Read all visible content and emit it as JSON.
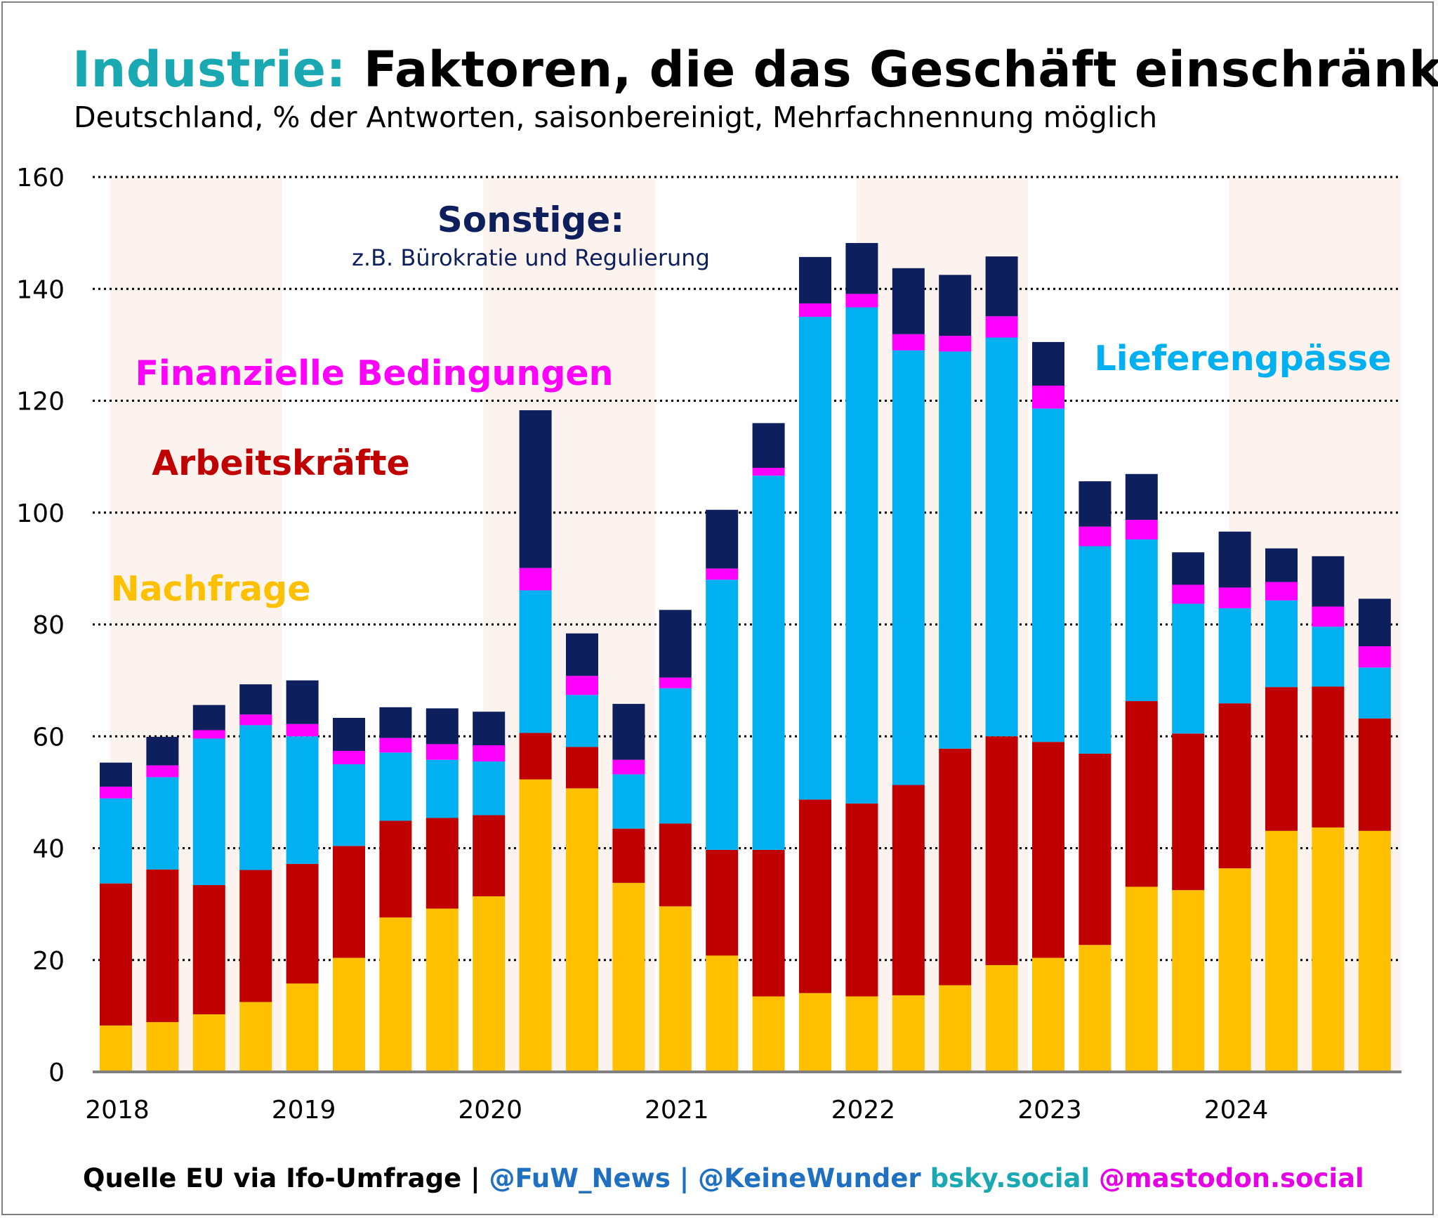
{
  "title": {
    "accent": "Industrie:",
    "rest": "Faktoren, die das Geschäft einschränken"
  },
  "subtitle": "Deutschland, % der Antworten, saisonbereinigt, Mehrfachnennung möglich",
  "source": {
    "part1": "Quelle EU via Ifo-Umfrage | ",
    "part2": "@FuW_News | @KeineWunder",
    "part3": " bsky.social",
    "part4": " @mastodon.social"
  },
  "colors": {
    "accent": "#1aa8b2",
    "nachfrage": "#ffc000",
    "arbeitskraefte": "#c00000",
    "liefer": "#00b0f0",
    "finanz": "#ff00ff",
    "sonstige": "#0d1f5c",
    "year_shade": "#fdf3ee",
    "axis": "#808080",
    "grid": "#000000"
  },
  "chart_data": {
    "type": "bar",
    "stacked": true,
    "ylim": [
      0,
      160
    ],
    "yticks": [
      0,
      20,
      40,
      60,
      80,
      100,
      120,
      140,
      160
    ],
    "grid": true,
    "years": [
      "2018",
      "2019",
      "2020",
      "2021",
      "2022",
      "2023",
      "2024"
    ],
    "shaded_years": [
      "2018",
      "2020",
      "2022",
      "2024"
    ],
    "quarters_per_year": 4,
    "series": [
      {
        "name": "Nachfrage",
        "color": "#ffc000",
        "values": [
          8.3,
          8.9,
          10.3,
          12.5,
          15.8,
          20.4,
          27.6,
          29.2,
          31.4,
          52.3,
          50.7,
          33.8,
          29.6,
          20.8,
          13.5,
          14.1,
          13.5,
          13.7,
          15.5,
          19.1,
          20.4,
          22.7,
          33.1,
          32.5,
          36.4,
          43.1,
          43.7,
          43.1
        ]
      },
      {
        "name": "Arbeitskräfte",
        "color": "#c00000",
        "values": [
          25.4,
          27.3,
          23.1,
          23.6,
          21.4,
          20.0,
          17.3,
          16.2,
          14.5,
          8.3,
          7.4,
          9.7,
          14.8,
          18.9,
          26.2,
          34.6,
          34.5,
          37.6,
          42.3,
          40.9,
          38.6,
          34.2,
          33.2,
          28.0,
          29.5,
          25.7,
          25.2,
          20.1
        ]
      },
      {
        "name": "Lieferengpässe",
        "color": "#00b0f0",
        "values": [
          15.2,
          16.5,
          26.2,
          25.9,
          22.8,
          14.6,
          12.2,
          10.4,
          9.6,
          25.5,
          9.3,
          9.7,
          24.2,
          48.3,
          66.9,
          86.3,
          88.7,
          77.7,
          71.0,
          71.3,
          59.6,
          37.1,
          28.9,
          23.2,
          17.0,
          15.5,
          10.7,
          9.1
        ]
      },
      {
        "name": "Finanzielle Bedingungen",
        "color": "#ff00ff",
        "values": [
          2.1,
          2.1,
          1.5,
          1.9,
          2.2,
          2.4,
          2.6,
          2.8,
          2.9,
          4.0,
          3.4,
          2.6,
          1.9,
          2.0,
          1.4,
          2.4,
          2.4,
          2.9,
          2.8,
          3.8,
          4.1,
          3.5,
          3.5,
          3.4,
          3.7,
          3.3,
          3.6,
          3.8
        ]
      },
      {
        "name": "Sonstige",
        "color": "#0d1f5c",
        "values": [
          4.3,
          5.1,
          4.5,
          5.4,
          7.8,
          5.9,
          5.5,
          6.4,
          6.0,
          28.2,
          7.6,
          10.0,
          12.1,
          10.5,
          8.0,
          8.3,
          9.1,
          11.8,
          10.9,
          10.7,
          7.8,
          8.1,
          8.2,
          5.8,
          10.0,
          6.0,
          9.0,
          8.5
        ]
      }
    ],
    "annotations": [
      {
        "id": "sonstige",
        "text": "Sonstige:",
        "subtext": "z.B. Bürokratie und Regulierung",
        "color": "#0d1f5c"
      },
      {
        "id": "liefer",
        "text": "Lieferengpässe",
        "color": "#00b0f0"
      },
      {
        "id": "finanz",
        "text": "Finanzielle Bedingungen",
        "color": "#ff00ff"
      },
      {
        "id": "arbeit",
        "text": "Arbeitskräfte",
        "color": "#c00000"
      },
      {
        "id": "nachfrage",
        "text": "Nachfrage",
        "color": "#ffc000"
      }
    ]
  }
}
